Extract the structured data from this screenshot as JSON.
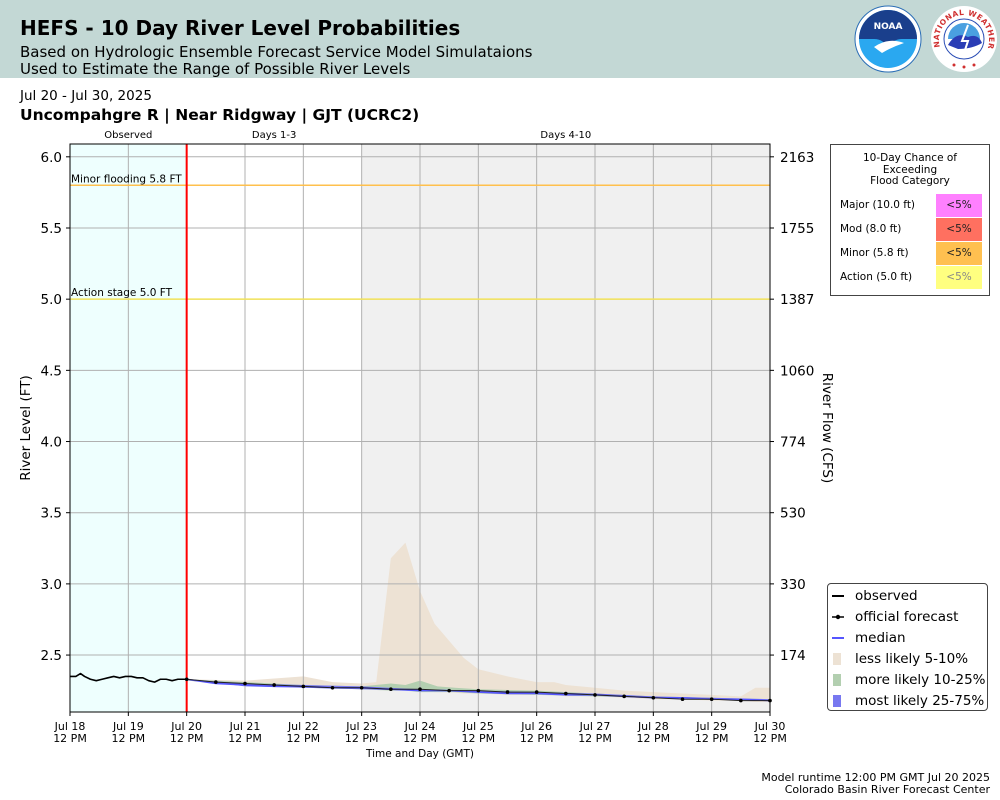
{
  "header": {
    "title": "HEFS - 10 Day River Level Probabilities",
    "subtitle_1": "Based on Hydrologic Ensemble Forecast Service Model Simulataions",
    "subtitle_2": "Used to Estimate the Range of Possible River Levels",
    "noaa_logo_text": "NOAA",
    "nws_logo_text": "NATIONAL WEATHER SERVICE"
  },
  "date_range": "Jul 20 - Jul 30, 2025",
  "station": "Uncompahgre R | Near Ridgway | GJT (UCRC2)",
  "footer": {
    "runtime": "Model runtime 12:00 PM GMT Jul 20 2025",
    "center": "Colorado Basin River Forecast Center"
  },
  "colors": {
    "observed_bg": "#eefffe",
    "days_4_10_bg": "#f0f0f0",
    "now_line": "#ff0000",
    "minor_flood_line": "#ffc04d",
    "action_line": "#f2e35a",
    "less_likely": "#ede2d4",
    "more_likely": "#b3cfb0",
    "most_likely": "#7878f0",
    "median": "#5555ff",
    "major": "#ff80ff",
    "moderate": "#ff7060",
    "minor": "#ffc050",
    "action": "#ffff80"
  },
  "legend": {
    "items": [
      {
        "symbol": "line",
        "label": "observed"
      },
      {
        "symbol": "dotline",
        "label": "official forecast"
      },
      {
        "symbol": "median",
        "label": "median"
      },
      {
        "symbol": "less",
        "label": "less likely 5-10%"
      },
      {
        "symbol": "more",
        "label": "more likely 10-25%"
      },
      {
        "symbol": "most",
        "label": "most likely 25-75%"
      }
    ]
  },
  "flood_table": {
    "title_lines": [
      "10-Day Chance of",
      "Exceeding",
      "Flood Category"
    ],
    "rows": [
      {
        "label": "Major (10.0 ft)",
        "value": "<5%",
        "color": "#ff80ff",
        "text_color": "#222222"
      },
      {
        "label": "Mod (8.0 ft)",
        "value": "<5%",
        "color": "#ff7060",
        "text_color": "#222222"
      },
      {
        "label": "Minor (5.8 ft)",
        "value": "<5%",
        "color": "#ffc050",
        "text_color": "#222222"
      },
      {
        "label": "Action (5.0 ft)",
        "value": "<5%",
        "color": "#ffff80",
        "text_color": "#888888"
      }
    ]
  },
  "chart_data": {
    "type": "area",
    "xlabel": "Time and Day (GMT)",
    "ylabel": "River Level (FT)",
    "y2label": "River Flow (CFS)",
    "x_range": [
      0,
      12
    ],
    "x_start_label": "Jul 18 12 PM",
    "ylim": [
      2.1,
      6.09
    ],
    "grid": true,
    "legend_position": "bottom-right",
    "x_ticks": [
      {
        "x": 0,
        "line1": "Jul 18",
        "line2": "12 PM"
      },
      {
        "x": 1,
        "line1": "Jul 19",
        "line2": "12 PM"
      },
      {
        "x": 2,
        "line1": "Jul 20",
        "line2": "12 PM"
      },
      {
        "x": 3,
        "line1": "Jul 21",
        "line2": "12 PM"
      },
      {
        "x": 4,
        "line1": "Jul 22",
        "line2": "12 PM"
      },
      {
        "x": 5,
        "line1": "Jul 23",
        "line2": "12 PM"
      },
      {
        "x": 6,
        "line1": "Jul 24",
        "line2": "12 PM"
      },
      {
        "x": 7,
        "line1": "Jul 25",
        "line2": "12 PM"
      },
      {
        "x": 8,
        "line1": "Jul 26",
        "line2": "12 PM"
      },
      {
        "x": 9,
        "line1": "Jul 27",
        "line2": "12 PM"
      },
      {
        "x": 10,
        "line1": "Jul 28",
        "line2": "12 PM"
      },
      {
        "x": 11,
        "line1": "Jul 29",
        "line2": "12 PM"
      },
      {
        "x": 12,
        "line1": "Jul 30",
        "line2": "12 PM"
      }
    ],
    "y_ticks": [
      2.5,
      3.0,
      3.5,
      4.0,
      4.5,
      5.0,
      5.5,
      6.0
    ],
    "y_tick_labels": [
      "2.5",
      "3.0",
      "3.5",
      "4.0",
      "4.5",
      "5.0",
      "5.5",
      "6.0"
    ],
    "y2_ticks": [
      {
        "stage": 2.5,
        "label": "174"
      },
      {
        "stage": 3.0,
        "label": "330"
      },
      {
        "stage": 3.5,
        "label": "530"
      },
      {
        "stage": 4.0,
        "label": "774"
      },
      {
        "stage": 4.5,
        "label": "1060"
      },
      {
        "stage": 5.0,
        "label": "1387"
      },
      {
        "stage": 5.5,
        "label": "1755"
      },
      {
        "stage": 6.0,
        "label": "2163"
      }
    ],
    "regions": [
      {
        "label": "Observed",
        "x_start": 0,
        "x_end": 2
      },
      {
        "label": "Days 1-3",
        "x_start": 2,
        "x_end": 5
      },
      {
        "label": "Days 4-10",
        "x_start": 5,
        "x_end": 12
      }
    ],
    "now_x": 2,
    "thresholds": [
      {
        "label": "Minor flooding 5.8 FT",
        "value": 5.8
      },
      {
        "label": "Action stage 5.0 FT",
        "value": 5.0
      }
    ],
    "observed": {
      "x": [
        0,
        0.1,
        0.18,
        0.25,
        0.35,
        0.45,
        0.55,
        0.65,
        0.75,
        0.85,
        0.95,
        1.05,
        1.15,
        1.25,
        1.35,
        1.45,
        1.55,
        1.65,
        1.75,
        1.85,
        1.95,
        2.0
      ],
      "y": [
        2.35,
        2.35,
        2.37,
        2.35,
        2.33,
        2.32,
        2.33,
        2.34,
        2.35,
        2.34,
        2.35,
        2.35,
        2.34,
        2.34,
        2.32,
        2.31,
        2.33,
        2.33,
        2.32,
        2.33,
        2.33,
        2.33
      ]
    },
    "official_forecast": {
      "x": [
        2,
        2.5,
        3,
        3.5,
        4,
        4.5,
        5,
        5.5,
        6,
        6.5,
        7,
        7.5,
        8,
        8.5,
        9,
        9.5,
        10,
        10.5,
        11,
        11.5,
        12
      ],
      "y": [
        2.33,
        2.31,
        2.3,
        2.29,
        2.28,
        2.27,
        2.27,
        2.26,
        2.26,
        2.25,
        2.25,
        2.24,
        2.24,
        2.23,
        2.22,
        2.21,
        2.2,
        2.19,
        2.19,
        2.18,
        2.18
      ]
    },
    "median": {
      "x": [
        2,
        2.5,
        3,
        3.5,
        4,
        4.5,
        5,
        5.5,
        6,
        6.5,
        7,
        7.5,
        8,
        8.5,
        9,
        9.5,
        10,
        10.5,
        11,
        11.5,
        12
      ],
      "y": [
        2.33,
        2.3,
        2.29,
        2.28,
        2.28,
        2.27,
        2.27,
        2.26,
        2.25,
        2.25,
        2.24,
        2.23,
        2.23,
        2.22,
        2.22,
        2.21,
        2.2,
        2.2,
        2.19,
        2.19,
        2.18
      ]
    },
    "less_likely_5_10": {
      "x": [
        2,
        3,
        4,
        4.5,
        5,
        5.25,
        5.5,
        5.75,
        6,
        6.25,
        6.5,
        6.75,
        7,
        7.5,
        8,
        8.3,
        8.5,
        9,
        9.5,
        10,
        10.5,
        11,
        11.5,
        11.75,
        12
      ],
      "upper": [
        2.33,
        2.32,
        2.35,
        2.31,
        2.3,
        2.31,
        3.18,
        3.29,
        2.95,
        2.72,
        2.6,
        2.48,
        2.4,
        2.35,
        2.31,
        2.31,
        2.29,
        2.27,
        2.25,
        2.24,
        2.23,
        2.22,
        2.21,
        2.27,
        2.27
      ],
      "lower": [
        2.32,
        2.29,
        2.27,
        2.27,
        2.26,
        2.26,
        2.25,
        2.25,
        2.25,
        2.24,
        2.24,
        2.23,
        2.23,
        2.22,
        2.22,
        2.22,
        2.21,
        2.21,
        2.2,
        2.19,
        2.19,
        2.18,
        2.18,
        2.17,
        2.17
      ]
    },
    "more_likely_10_25": {
      "x": [
        2,
        3,
        4,
        5,
        5.5,
        5.75,
        6,
        6.3,
        6.6,
        7,
        8,
        9,
        10,
        11,
        12
      ],
      "upper": [
        2.33,
        2.31,
        2.29,
        2.28,
        2.3,
        2.29,
        2.32,
        2.28,
        2.27,
        2.26,
        2.25,
        2.23,
        2.21,
        2.2,
        2.19
      ],
      "lower": [
        2.32,
        2.29,
        2.27,
        2.26,
        2.25,
        2.25,
        2.24,
        2.24,
        2.24,
        2.23,
        2.22,
        2.21,
        2.2,
        2.19,
        2.18
      ]
    },
    "most_likely_25_75": {
      "x": [
        2,
        3,
        4,
        5,
        6,
        7,
        8,
        9,
        10,
        11,
        12
      ],
      "upper": [
        2.33,
        2.3,
        2.29,
        2.28,
        2.26,
        2.25,
        2.24,
        2.23,
        2.21,
        2.2,
        2.19
      ],
      "lower": [
        2.33,
        2.28,
        2.27,
        2.26,
        2.25,
        2.24,
        2.23,
        2.22,
        2.2,
        2.19,
        2.18
      ]
    }
  }
}
